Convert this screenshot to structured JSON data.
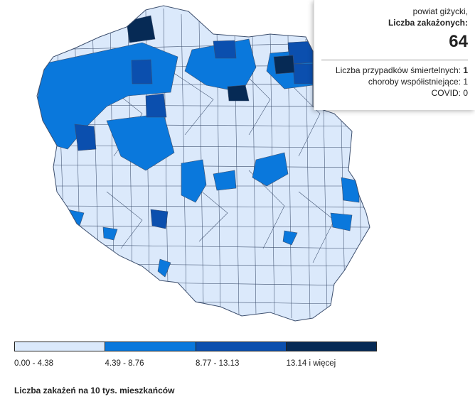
{
  "colors": {
    "class1": "#dbe9fb",
    "class2": "#0a78dc",
    "class3": "#0b4fae",
    "class4": "#062a55",
    "border": "#3d4f6e"
  },
  "tooltip": {
    "county": "powiat giżycki,",
    "cases_label": "Liczba zakażonych:",
    "cases_value": "64",
    "deaths_label": "Liczba przypadków śmiertelnych:",
    "deaths_value": "1",
    "comorb_label": "choroby współistniejące:",
    "comorb_value": "1",
    "covid_label": "COVID:",
    "covid_value": "0"
  },
  "legend": {
    "title": "Liczba zakażeń na 10 tys. mieszkańców",
    "classes": [
      {
        "label": "0.00 - 4.38",
        "color": "#dbe9fb"
      },
      {
        "label": "4.39 - 8.76",
        "color": "#0a78dc"
      },
      {
        "label": "8.77 - 13.13",
        "color": "#0b4fae"
      },
      {
        "label": "13.14 i więcej",
        "color": "#062a55"
      }
    ]
  }
}
